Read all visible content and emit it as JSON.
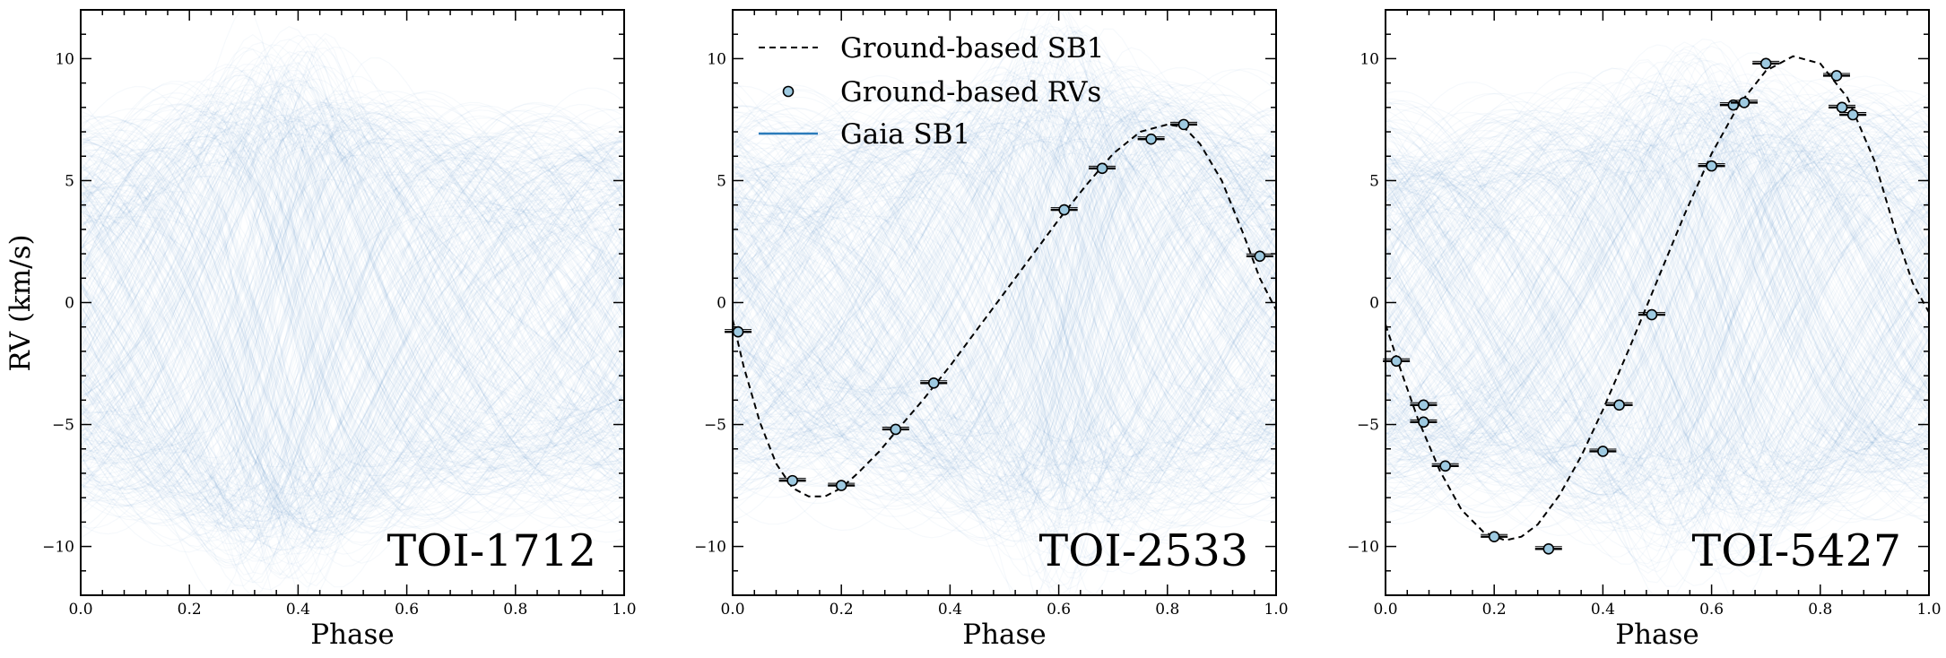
{
  "figure": {
    "ylabel": "RV (km/s)"
  },
  "legend": {
    "entries": [
      {
        "label": "Ground-based SB1",
        "style": "dashed-line",
        "color": "#000000"
      },
      {
        "label": "Ground-based RVs",
        "style": "marker",
        "color": "#9ecae1"
      },
      {
        "label": "Gaia SB1",
        "style": "line",
        "color": "#1f77b4"
      }
    ]
  },
  "colors": {
    "gaia_sb1": "#2878b5",
    "marker_fill": "#9ecae1",
    "frame": "#000000"
  },
  "chart_data": [
    {
      "type": "line",
      "panel_label": "TOI-1712",
      "xlabel": "Phase",
      "ylabel": "RV (km/s)",
      "xlim": [
        0,
        1
      ],
      "ylim": [
        -12,
        12
      ],
      "xticks": [
        "0.0",
        "0.2",
        "0.4",
        "0.6",
        "0.8",
        "1.0"
      ],
      "yticks": [
        "−10",
        "−5",
        "0",
        "5",
        "10"
      ],
      "gaia_sb1_posterior": {
        "K": [
          6.5,
          9.0
        ],
        "gamma": [
          -1.0,
          0.0
        ],
        "peak_phase": [
          0.55,
          0.7
        ],
        "ecc": [
          0.0,
          0.5
        ]
      },
      "ground_sb1": null,
      "ground_rvs": []
    },
    {
      "type": "line",
      "panel_label": "TOI-2533",
      "xlabel": "Phase",
      "xlim": [
        0,
        1
      ],
      "ylim": [
        -12,
        12
      ],
      "xticks": [
        "0.0",
        "0.2",
        "0.4",
        "0.6",
        "0.8",
        "1.0"
      ],
      "yticks": [
        "−10",
        "−5",
        "0",
        "5",
        "10"
      ],
      "gaia_sb1_posterior": {
        "K": [
          6.0,
          9.0
        ],
        "gamma": [
          -1.0,
          1.0
        ],
        "peak_phase": [
          0.8,
          0.92
        ],
        "ecc": [
          0.0,
          0.5
        ]
      },
      "ground_sb1": {
        "phase": [
          0.0,
          0.02,
          0.05,
          0.08,
          0.11,
          0.14,
          0.17,
          0.2,
          0.23,
          0.27,
          0.3,
          0.35,
          0.4,
          0.45,
          0.5,
          0.55,
          0.6,
          0.65,
          0.7,
          0.75,
          0.8,
          0.83,
          0.86,
          0.9,
          0.94,
          0.97,
          1.0
        ],
        "rv": [
          -0.7,
          -2.6,
          -4.9,
          -6.6,
          -7.6,
          -7.95,
          -7.95,
          -7.6,
          -7.0,
          -6.1,
          -5.3,
          -4.0,
          -2.6,
          -1.1,
          0.4,
          1.9,
          3.4,
          4.8,
          6.1,
          7.0,
          7.3,
          7.2,
          6.5,
          5.0,
          2.8,
          1.0,
          -0.3
        ]
      },
      "ground_rvs": [
        {
          "phase": 0.01,
          "rv": -1.2
        },
        {
          "phase": 0.11,
          "rv": -7.3
        },
        {
          "phase": 0.2,
          "rv": -7.5
        },
        {
          "phase": 0.3,
          "rv": -5.2
        },
        {
          "phase": 0.37,
          "rv": -3.3
        },
        {
          "phase": 0.61,
          "rv": 3.8
        },
        {
          "phase": 0.68,
          "rv": 5.5
        },
        {
          "phase": 0.77,
          "rv": 6.7
        },
        {
          "phase": 0.83,
          "rv": 7.3
        },
        {
          "phase": 0.97,
          "rv": 1.9
        }
      ]
    },
    {
      "type": "line",
      "panel_label": "TOI-5427",
      "xlabel": "Phase",
      "xlim": [
        0,
        1
      ],
      "ylim": [
        -12,
        12
      ],
      "xticks": [
        "0.0",
        "0.2",
        "0.4",
        "0.6",
        "0.8",
        "1.0"
      ],
      "yticks": [
        "−10",
        "−5",
        "0",
        "5",
        "10"
      ],
      "gaia_sb1_posterior": {
        "K": [
          6.0,
          9.0
        ],
        "gamma": [
          -1.0,
          0.5
        ],
        "peak_phase": [
          0.75,
          0.95
        ],
        "ecc": [
          0.0,
          0.4
        ]
      },
      "ground_sb1": {
        "phase": [
          0.0,
          0.03,
          0.06,
          0.1,
          0.14,
          0.18,
          0.22,
          0.25,
          0.28,
          0.32,
          0.36,
          0.4,
          0.45,
          0.5,
          0.55,
          0.6,
          0.65,
          0.7,
          0.75,
          0.8,
          0.85,
          0.9,
          0.94,
          0.97,
          1.0
        ],
        "rv": [
          -0.9,
          -2.9,
          -4.8,
          -6.9,
          -8.5,
          -9.4,
          -9.75,
          -9.6,
          -9.1,
          -7.9,
          -6.3,
          -4.4,
          -1.8,
          0.9,
          3.6,
          6.1,
          8.1,
          9.5,
          10.1,
          9.8,
          8.4,
          5.8,
          2.8,
          0.8,
          -0.4
        ]
      },
      "ground_rvs": [
        {
          "phase": 0.02,
          "rv": -2.4
        },
        {
          "phase": 0.07,
          "rv": -4.2
        },
        {
          "phase": 0.07,
          "rv": -4.9
        },
        {
          "phase": 0.11,
          "rv": -6.7
        },
        {
          "phase": 0.2,
          "rv": -9.6
        },
        {
          "phase": 0.3,
          "rv": -10.1
        },
        {
          "phase": 0.4,
          "rv": -6.1
        },
        {
          "phase": 0.43,
          "rv": -4.2
        },
        {
          "phase": 0.49,
          "rv": -0.5
        },
        {
          "phase": 0.6,
          "rv": 5.6
        },
        {
          "phase": 0.64,
          "rv": 8.1
        },
        {
          "phase": 0.66,
          "rv": 8.2
        },
        {
          "phase": 0.7,
          "rv": 9.8
        },
        {
          "phase": 0.83,
          "rv": 9.3
        },
        {
          "phase": 0.84,
          "rv": 8.0
        },
        {
          "phase": 0.86,
          "rv": 7.7
        }
      ]
    }
  ]
}
